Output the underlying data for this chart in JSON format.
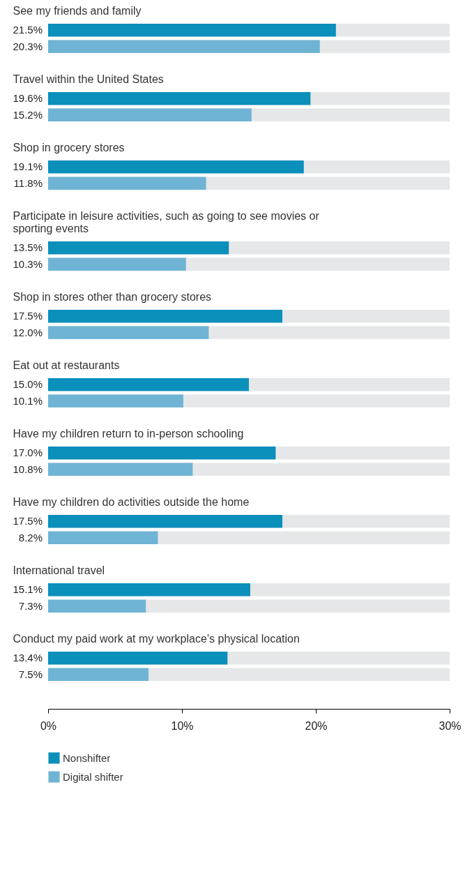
{
  "chart_data": {
    "type": "bar",
    "orientation": "horizontal",
    "categories": [
      "See my friends and family",
      "Travel within the United States",
      "Shop in grocery stores",
      "Participate in leisure activities, such as going to see movies or sporting events",
      "Shop in stores other than grocery stores",
      "Eat out at restaurants",
      "Have my children return to in-person schooling",
      "Have my children do activities outside the home",
      "International travel",
      "Conduct my paid work at my workplace’s physical location"
    ],
    "series": [
      {
        "name": "Nonshifter",
        "color": "#0b8fbb",
        "values": [
          21.5,
          19.6,
          19.1,
          13.5,
          17.5,
          15.0,
          17.0,
          17.5,
          15.1,
          13.4
        ],
        "value_labels": [
          "21.5%",
          "19.6%",
          "19.1%",
          "13.5%",
          "17.5%",
          "15.0%",
          "17.0%",
          "17.5%",
          "15.1%",
          "13.4%"
        ]
      },
      {
        "name": "Digital shifter",
        "color": "#6fb4d4",
        "values": [
          20.3,
          15.2,
          11.8,
          10.3,
          12.0,
          10.1,
          10.8,
          8.2,
          7.3,
          7.5
        ],
        "value_labels": [
          "20.3%",
          "15.2%",
          "11.8%",
          "10.3%",
          "12.0%",
          "10.1%",
          "10.8%",
          "8.2%",
          "7.3%",
          "7.5%"
        ]
      }
    ],
    "xlim": [
      0,
      30
    ],
    "xticks": [
      {
        "value": 0,
        "label": "0%"
      },
      {
        "value": 10,
        "label": "10%"
      },
      {
        "value": 20,
        "label": "20%"
      },
      {
        "value": 30,
        "label": "30%"
      }
    ],
    "grid": false,
    "legend": "bottom left"
  }
}
